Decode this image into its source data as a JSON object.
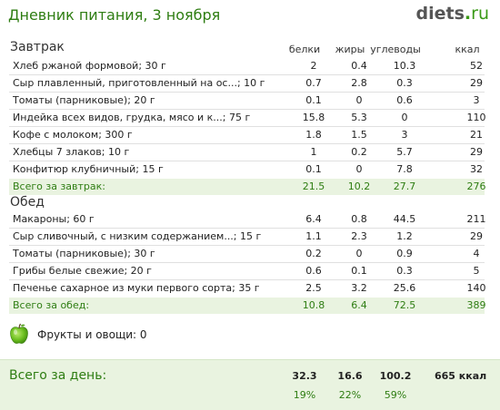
{
  "header": {
    "title": "Дневник питания, 3 ноября",
    "logo_main": "diets",
    "logo_dot": ".",
    "logo_tld": "ru"
  },
  "columns": {
    "protein": "белки",
    "fat": "жиры",
    "carbs": "углеводы",
    "kcal": "ккал"
  },
  "meals": [
    {
      "title": "Завтрак",
      "items": [
        {
          "name": "Хлеб ржаной формовой; 30 г",
          "protein": "2",
          "fat": "0.4",
          "carbs": "10.3",
          "kcal": "52"
        },
        {
          "name": "Сыр плавленный, приготовленный на ос...; 10 г",
          "protein": "0.7",
          "fat": "2.8",
          "carbs": "0.3",
          "kcal": "29"
        },
        {
          "name": "Томаты (парниковые); 20 г",
          "protein": "0.1",
          "fat": "0",
          "carbs": "0.6",
          "kcal": "3"
        },
        {
          "name": "Индейка всех видов, грудка, мясо и к...; 75 г",
          "protein": "15.8",
          "fat": "5.3",
          "carbs": "0",
          "kcal": "110"
        },
        {
          "name": "Кофе с молоком; 300 г",
          "protein": "1.8",
          "fat": "1.5",
          "carbs": "3",
          "kcal": "21"
        },
        {
          "name": "Хлебцы 7 злаков; 10 г",
          "protein": "1",
          "fat": "0.2",
          "carbs": "5.7",
          "kcal": "29"
        },
        {
          "name": "Конфитюр клубничный; 15 г",
          "protein": "0.1",
          "fat": "0",
          "carbs": "7.8",
          "kcal": "32"
        }
      ],
      "total": {
        "name": "Всего за завтрак:",
        "protein": "21.5",
        "fat": "10.2",
        "carbs": "27.7",
        "kcal": "276"
      }
    },
    {
      "title": "Обед",
      "items": [
        {
          "name": "Макароны; 60 г",
          "protein": "6.4",
          "fat": "0.8",
          "carbs": "44.5",
          "kcal": "211"
        },
        {
          "name": "Сыр сливочный, с низким содержанием...; 15 г",
          "protein": "1.1",
          "fat": "2.3",
          "carbs": "1.2",
          "kcal": "29"
        },
        {
          "name": "Томаты (парниковые); 30 г",
          "protein": "0.2",
          "fat": "0",
          "carbs": "0.9",
          "kcal": "4"
        },
        {
          "name": "Грибы белые свежие; 20 г",
          "protein": "0.6",
          "fat": "0.1",
          "carbs": "0.3",
          "kcal": "5"
        },
        {
          "name": "Печенье сахарное из муки первого сорта; 35 г",
          "protein": "2.5",
          "fat": "3.2",
          "carbs": "25.6",
          "kcal": "140"
        }
      ],
      "total": {
        "name": "Всего за обед:",
        "protein": "10.8",
        "fat": "6.4",
        "carbs": "72.5",
        "kcal": "389"
      }
    }
  ],
  "fruits": {
    "icon": "apple-icon",
    "label": "Фрукты и овощи: 0"
  },
  "day": {
    "label": "Всего за день:",
    "protein": "32.3",
    "fat": "16.6",
    "carbs": "100.2",
    "kcal": "665 ккал",
    "protein_pct": "19%",
    "fat_pct": "22%",
    "carbs_pct": "59%"
  },
  "colors": {
    "accent": "#2e7d12",
    "total_bg": "#e9f3e0",
    "logo_gray": "#555555"
  }
}
